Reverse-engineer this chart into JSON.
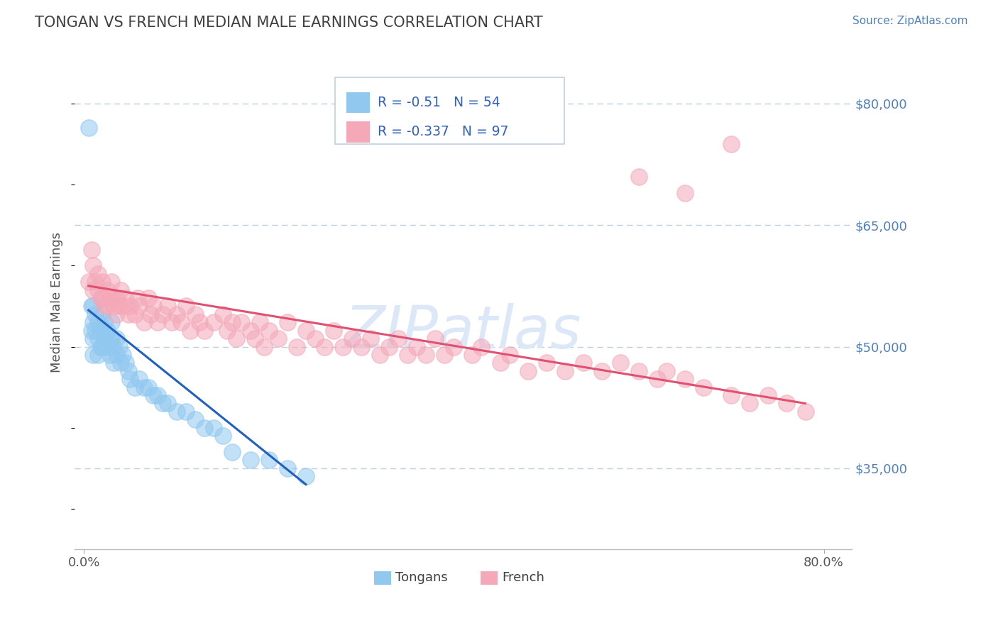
{
  "title": "TONGAN VS FRENCH MEDIAN MALE EARNINGS CORRELATION CHART",
  "source": "Source: ZipAtlas.com",
  "ylabel": "Median Male Earnings",
  "ytick_labels": [
    "$35,000",
    "$50,000",
    "$65,000",
    "$80,000"
  ],
  "ytick_values": [
    35000,
    50000,
    65000,
    80000
  ],
  "ymin": 25000,
  "ymax": 86000,
  "xmin": -0.01,
  "xmax": 0.83,
  "tongan_R": -0.51,
  "tongan_N": 54,
  "french_R": -0.337,
  "french_N": 97,
  "tongan_color": "#90c8f0",
  "french_color": "#f4a8b8",
  "tongan_line_color": "#2060c0",
  "french_line_color": "#e05070",
  "legend_text_color": "#3060c0",
  "legend_n_color": "#3060c0",
  "watermark_text": "ZIPatlas",
  "watermark_color": "#dce8f8",
  "background_color": "#ffffff",
  "grid_color": "#c0d0e0",
  "title_color": "#404040",
  "source_color": "#5080c0",
  "ytick_color": "#5080c0",
  "tongan_x": [
    0.005,
    0.008,
    0.008,
    0.01,
    0.01,
    0.01,
    0.01,
    0.012,
    0.012,
    0.015,
    0.015,
    0.015,
    0.018,
    0.018,
    0.02,
    0.02,
    0.02,
    0.022,
    0.022,
    0.025,
    0.025,
    0.028,
    0.028,
    0.03,
    0.03,
    0.032,
    0.032,
    0.035,
    0.035,
    0.038,
    0.04,
    0.042,
    0.045,
    0.048,
    0.05,
    0.055,
    0.06,
    0.065,
    0.07,
    0.075,
    0.08,
    0.085,
    0.09,
    0.1,
    0.11,
    0.12,
    0.13,
    0.14,
    0.15,
    0.16,
    0.18,
    0.2,
    0.22,
    0.24
  ],
  "tongan_y": [
    77000,
    55000,
    52000,
    55000,
    53000,
    51000,
    49000,
    54000,
    52000,
    53000,
    51000,
    49000,
    52000,
    50000,
    54000,
    52000,
    50000,
    53000,
    51000,
    52000,
    50000,
    51000,
    49000,
    53000,
    51000,
    50000,
    48000,
    51000,
    49000,
    50000,
    48000,
    49000,
    48000,
    47000,
    46000,
    45000,
    46000,
    45000,
    45000,
    44000,
    44000,
    43000,
    43000,
    42000,
    42000,
    41000,
    40000,
    40000,
    39000,
    37000,
    36000,
    36000,
    35000,
    34000
  ],
  "french_x": [
    0.005,
    0.008,
    0.01,
    0.01,
    0.012,
    0.015,
    0.015,
    0.018,
    0.02,
    0.02,
    0.022,
    0.025,
    0.025,
    0.028,
    0.03,
    0.03,
    0.032,
    0.035,
    0.035,
    0.038,
    0.04,
    0.042,
    0.045,
    0.048,
    0.05,
    0.055,
    0.058,
    0.06,
    0.065,
    0.07,
    0.072,
    0.075,
    0.08,
    0.085,
    0.09,
    0.095,
    0.1,
    0.105,
    0.11,
    0.115,
    0.12,
    0.125,
    0.13,
    0.14,
    0.15,
    0.155,
    0.16,
    0.165,
    0.17,
    0.18,
    0.185,
    0.19,
    0.195,
    0.2,
    0.21,
    0.22,
    0.23,
    0.24,
    0.25,
    0.26,
    0.27,
    0.28,
    0.29,
    0.3,
    0.31,
    0.32,
    0.33,
    0.34,
    0.35,
    0.36,
    0.37,
    0.38,
    0.39,
    0.4,
    0.42,
    0.43,
    0.45,
    0.46,
    0.48,
    0.5,
    0.52,
    0.54,
    0.56,
    0.58,
    0.6,
    0.62,
    0.63,
    0.65,
    0.67,
    0.7,
    0.72,
    0.74,
    0.76,
    0.78,
    0.6,
    0.65,
    0.7
  ],
  "french_y": [
    58000,
    62000,
    60000,
    57000,
    58000,
    59000,
    57000,
    56000,
    58000,
    56000,
    55000,
    57000,
    55000,
    56000,
    58000,
    56000,
    55000,
    56000,
    54000,
    55000,
    57000,
    55000,
    56000,
    54000,
    55000,
    54000,
    56000,
    55000,
    53000,
    56000,
    54000,
    55000,
    53000,
    54000,
    55000,
    53000,
    54000,
    53000,
    55000,
    52000,
    54000,
    53000,
    52000,
    53000,
    54000,
    52000,
    53000,
    51000,
    53000,
    52000,
    51000,
    53000,
    50000,
    52000,
    51000,
    53000,
    50000,
    52000,
    51000,
    50000,
    52000,
    50000,
    51000,
    50000,
    51000,
    49000,
    50000,
    51000,
    49000,
    50000,
    49000,
    51000,
    49000,
    50000,
    49000,
    50000,
    48000,
    49000,
    47000,
    48000,
    47000,
    48000,
    47000,
    48000,
    47000,
    46000,
    47000,
    46000,
    45000,
    44000,
    43000,
    44000,
    43000,
    42000,
    71000,
    69000,
    75000
  ],
  "tongan_line_x": [
    0.005,
    0.24
  ],
  "tongan_line_y": [
    54500,
    33000
  ],
  "french_line_x": [
    0.005,
    0.78
  ],
  "french_line_y": [
    57500,
    43000
  ]
}
